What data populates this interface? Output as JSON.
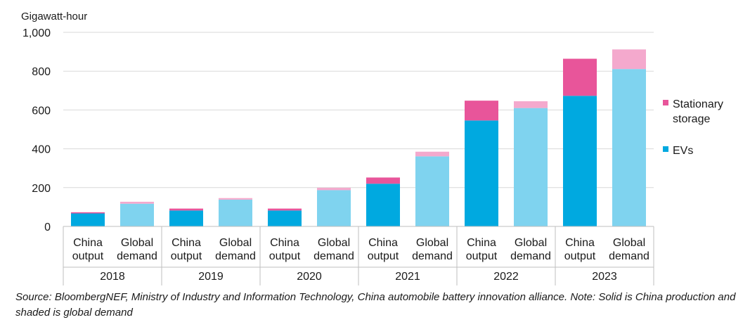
{
  "chart_data": {
    "type": "bar",
    "stacked": true,
    "ylabel": "Gigawatt-hour",
    "ylim": [
      0,
      1000
    ],
    "yticks": [
      "0",
      "200",
      "400",
      "600",
      "800",
      "1,000"
    ],
    "ytick_values": [
      0,
      200,
      400,
      600,
      800,
      1000
    ],
    "years": [
      "2018",
      "2019",
      "2020",
      "2021",
      "2022",
      "2023"
    ],
    "bar_labels": [
      [
        "China",
        "output"
      ],
      [
        "Global",
        "demand"
      ]
    ],
    "series": [
      {
        "name": "EVs",
        "china_output": [
          67,
          82,
          82,
          220,
          546,
          673
        ],
        "global_demand": [
          117,
          138,
          187,
          361,
          610,
          811
        ]
      },
      {
        "name": "Stationary storage",
        "china_output": [
          6,
          10,
          10,
          32,
          102,
          191
        ],
        "global_demand": [
          10,
          8,
          12,
          24,
          35,
          101
        ]
      }
    ],
    "colors": {
      "china_evs": "#00a9e0",
      "global_evs": "#7fd3ef",
      "china_storage": "#e8559a",
      "global_storage": "#f4a9cd"
    },
    "legend": [
      {
        "label_lines": [
          "Stationary",
          "storage"
        ],
        "color": "#e8559a"
      },
      {
        "label_lines": [
          "EVs"
        ],
        "color": "#00a9e0"
      }
    ]
  },
  "source_note": "Source: BloombergNEF, Ministry of Industry and Information Technology, China automobile battery innovation alliance. Note: Solid is China production and shaded is global demand"
}
